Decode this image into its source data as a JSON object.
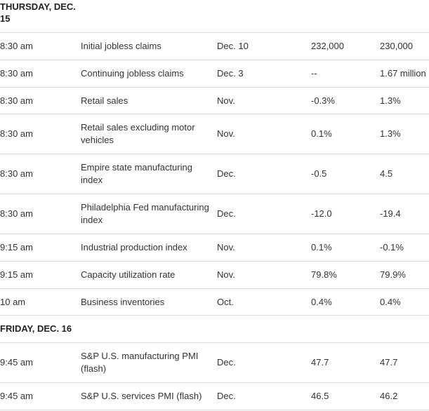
{
  "sections": [
    {
      "header": "THURSDAY, DEC. 15",
      "rows": [
        {
          "time": "8:30 am",
          "event": "Initial jobless claims",
          "period": "Dec. 10",
          "forecast": "232,000",
          "previous": "230,000"
        },
        {
          "time": "8:30 am",
          "event": "Continuing jobless claims",
          "period": "Dec. 3",
          "forecast": "--",
          "previous": "1.67 million"
        },
        {
          "time": "8:30 am",
          "event": "Retail sales",
          "period": "Nov.",
          "forecast": "-0.3%",
          "previous": "1.3%"
        },
        {
          "time": "8:30 am",
          "event": "Retail sales excluding motor vehicles",
          "period": "Nov.",
          "forecast": "0.1%",
          "previous": "1.3%"
        },
        {
          "time": "8:30 am",
          "event": "Empire state manufacturing index",
          "period": "Dec.",
          "forecast": "-0.5",
          "previous": "4.5"
        },
        {
          "time": "8:30 am",
          "event": "Philadelphia Fed manufacturing index",
          "period": "Dec.",
          "forecast": "-12.0",
          "previous": "-19.4"
        },
        {
          "time": "9:15 am",
          "event": "Industrial production index",
          "period": "Nov.",
          "forecast": "0.1%",
          "previous": "-0.1%"
        },
        {
          "time": "9:15 am",
          "event": "Capacity utilization rate",
          "period": "Nov.",
          "forecast": "79.8%",
          "previous": "79.9%"
        },
        {
          "time": "10 am",
          "event": "Business inventories",
          "period": "Oct.",
          "forecast": "0.4%",
          "previous": "0.4%"
        }
      ]
    },
    {
      "header": "FRIDAY, DEC. 16",
      "rows": [
        {
          "time": "9:45 am",
          "event": "S&P U.S. manufacturing PMI (flash)",
          "period": "Dec.",
          "forecast": "47.7",
          "previous": "47.7"
        },
        {
          "time": "9:45 am",
          "event": "S&P U.S. services PMI (flash)",
          "period": "Dec.",
          "forecast": "46.5",
          "previous": "46.2"
        }
      ]
    }
  ]
}
